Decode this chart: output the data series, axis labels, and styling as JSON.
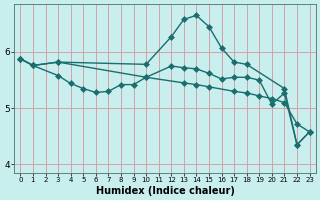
{
  "xlabel": "Humidex (Indice chaleur)",
  "bg_color": "#c8eeed",
  "grid_color": "#d4a0a8",
  "line_color": "#1a6e6e",
  "xlim": [
    -0.5,
    23.5
  ],
  "ylim": [
    3.85,
    6.85
  ],
  "yticks": [
    4,
    5,
    6
  ],
  "xticks": [
    0,
    1,
    2,
    3,
    4,
    5,
    6,
    7,
    8,
    9,
    10,
    11,
    12,
    13,
    14,
    15,
    16,
    17,
    18,
    19,
    20,
    21,
    22,
    23
  ],
  "line1_x": [
    0,
    1,
    3,
    10,
    13,
    14,
    15,
    17,
    18,
    19,
    20,
    21,
    22,
    23
  ],
  "line1_y": [
    5.88,
    5.76,
    5.82,
    5.55,
    5.45,
    5.42,
    5.38,
    5.3,
    5.27,
    5.22,
    5.17,
    5.1,
    4.72,
    4.58
  ],
  "line2_x": [
    0,
    1,
    3,
    10,
    12,
    13,
    14,
    15,
    16,
    17,
    18,
    21,
    22,
    23
  ],
  "line2_y": [
    5.88,
    5.76,
    5.82,
    5.78,
    6.27,
    6.58,
    6.65,
    6.45,
    6.07,
    5.82,
    5.78,
    5.35,
    4.35,
    4.58
  ],
  "line3_x": [
    0,
    1,
    3,
    4,
    5,
    6,
    7,
    8,
    9,
    10,
    12,
    13,
    14,
    15,
    16,
    17,
    18,
    19,
    20,
    21,
    22,
    23
  ],
  "line3_y": [
    5.88,
    5.76,
    5.58,
    5.44,
    5.35,
    5.28,
    5.3,
    5.42,
    5.42,
    5.55,
    5.75,
    5.72,
    5.7,
    5.62,
    5.52,
    5.55,
    5.55,
    5.5,
    5.07,
    5.27,
    4.35,
    4.58
  ],
  "xlabel_fontsize": 7,
  "xlabel_fontweight": "bold"
}
